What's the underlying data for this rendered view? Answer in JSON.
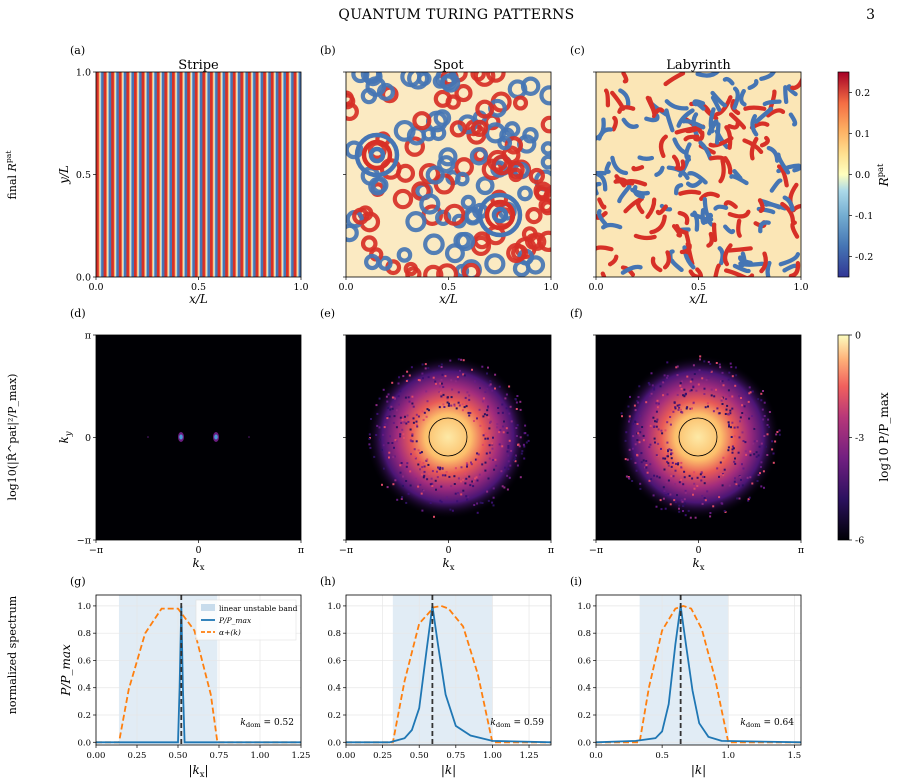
{
  "header": {
    "title": "QUANTUM TURING PATTERNS",
    "page_number": "3"
  },
  "row_labels": [
    "final R^pat",
    "log10(|R̂^pat|²/P_max)",
    "normalized spectrum"
  ],
  "colors": {
    "stripe_line": "#1f77b4",
    "dashed_curve": "#ff7f0e",
    "band": "#c8dcec",
    "vline": "#333333"
  },
  "chart_data": [
    {
      "type": "heatmap",
      "panel": "(a)",
      "title": "Stripe",
      "xlabel": "x/L",
      "ylabel": "y/L",
      "xlim": [
        0,
        1
      ],
      "ylim": [
        0,
        1
      ],
      "xticks": [
        "0.0",
        "0.5",
        "1.0"
      ],
      "yticks": [
        "0.0",
        "0.5",
        "1.0"
      ]
    },
    {
      "type": "heatmap",
      "panel": "(b)",
      "title": "Spot",
      "xlabel": "x/L",
      "xlim": [
        0,
        1
      ],
      "xticks": [
        "0.0",
        "0.5",
        "1.0"
      ]
    },
    {
      "type": "heatmap",
      "panel": "(c)",
      "title": "Labyrinth",
      "xlabel": "x/L",
      "xlim": [
        0,
        1
      ],
      "xticks": [
        "0.0",
        "0.5",
        "1.0"
      ],
      "colorbar": {
        "label": "R^pat",
        "range": [
          -0.25,
          0.25
        ],
        "ticks": [
          "0.2",
          "0.1",
          "0.0",
          "-0.1",
          "-0.2"
        ]
      }
    },
    {
      "type": "heatmap",
      "panel": "(d)",
      "xlabel": "k_x",
      "ylabel": "k_y",
      "xticks": [
        "−π",
        "0",
        "π"
      ],
      "yticks": [
        "π",
        "0",
        "−π"
      ]
    },
    {
      "type": "heatmap",
      "panel": "(e)",
      "xlabel": "k_x",
      "xticks": [
        "−π",
        "0",
        "π"
      ]
    },
    {
      "type": "heatmap",
      "panel": "(f)",
      "xlabel": "k_x",
      "xticks": [
        "−π",
        "0",
        "π"
      ],
      "colorbar": {
        "label": "log10 P/P_max",
        "range": [
          -6,
          0
        ],
        "ticks": [
          "0",
          "-3",
          "-6"
        ]
      }
    },
    {
      "type": "line",
      "panel": "(g)",
      "xlabel": "|k_x|",
      "ylabel": "P/P_max",
      "xlim": [
        0,
        1.25
      ],
      "ylim": [
        -0.02,
        1.08
      ],
      "xticks": [
        "0.00",
        "0.25",
        "0.50",
        "0.75",
        "1.00",
        "1.25"
      ],
      "yticks": [
        "0.0",
        "0.2",
        "0.4",
        "0.6",
        "0.8",
        "1.0"
      ],
      "band": [
        0.14,
        0.74
      ],
      "k_dom": 0.52,
      "annotation": "k_dom = 0.52",
      "legend": [
        "linear unstable band",
        "P/P_max",
        "α+(k)"
      ],
      "spectrum": {
        "x": [
          0,
          0.5,
          0.51,
          0.52,
          0.53,
          0.54,
          1.25
        ],
        "y": [
          0,
          0,
          0.4,
          1.0,
          0.4,
          0,
          0
        ]
      },
      "alpha_curve": {
        "x": [
          0,
          0.14,
          0.2,
          0.3,
          0.4,
          0.5,
          0.6,
          0.7,
          0.74,
          1.25
        ],
        "y": [
          0,
          0,
          0.39,
          0.8,
          0.98,
          0.98,
          0.82,
          0.35,
          0,
          0
        ]
      }
    },
    {
      "type": "line",
      "panel": "(h)",
      "xlabel": "|k|",
      "xlim": [
        0,
        1.4
      ],
      "ylim": [
        -0.02,
        1.08
      ],
      "xticks": [
        "0.00",
        "0.25",
        "0.50",
        "0.75",
        "1.00",
        "1.25"
      ],
      "yticks": [
        "0.0",
        "0.2",
        "0.4",
        "0.6",
        "0.8",
        "1.0"
      ],
      "band": [
        0.32,
        1.0
      ],
      "k_dom": 0.59,
      "annotation": "k_dom = 0.59",
      "spectrum": {
        "x": [
          0,
          0.3,
          0.4,
          0.45,
          0.5,
          0.55,
          0.59,
          0.63,
          0.68,
          0.75,
          0.85,
          1.0,
          1.4
        ],
        "y": [
          0,
          0,
          0.03,
          0.09,
          0.25,
          0.67,
          1.0,
          0.7,
          0.35,
          0.12,
          0.05,
          0.01,
          0
        ]
      },
      "alpha_curve": {
        "x": [
          0,
          0.32,
          0.4,
          0.5,
          0.6,
          0.65,
          0.7,
          0.8,
          0.9,
          1.0,
          1.4
        ],
        "y": [
          0,
          0,
          0.45,
          0.87,
          0.99,
          1.0,
          0.98,
          0.85,
          0.5,
          0,
          0
        ]
      }
    },
    {
      "type": "line",
      "panel": "(i)",
      "xlabel": "|k|",
      "xlim": [
        0,
        1.55
      ],
      "ylim": [
        -0.02,
        1.08
      ],
      "xticks": [
        "0.0",
        "0.5",
        "1.0",
        "1.5"
      ],
      "yticks": [
        "0.0",
        "0.2",
        "0.4",
        "0.6",
        "0.8",
        "1.0"
      ],
      "band": [
        0.33,
        1.0
      ],
      "k_dom": 0.64,
      "annotation": "k_dom = 0.64",
      "spectrum": {
        "x": [
          0,
          0.3,
          0.45,
          0.5,
          0.55,
          0.6,
          0.64,
          0.68,
          0.73,
          0.78,
          0.85,
          0.95,
          1.55
        ],
        "y": [
          0,
          0.01,
          0.03,
          0.08,
          0.28,
          0.72,
          1.0,
          0.72,
          0.38,
          0.14,
          0.04,
          0.01,
          0
        ]
      },
      "alpha_curve": {
        "x": [
          0,
          0.33,
          0.4,
          0.5,
          0.6,
          0.66,
          0.72,
          0.8,
          0.9,
          1.0,
          1.55
        ],
        "y": [
          0,
          0,
          0.4,
          0.82,
          0.98,
          1.0,
          0.98,
          0.83,
          0.47,
          0,
          0
        ]
      }
    }
  ]
}
